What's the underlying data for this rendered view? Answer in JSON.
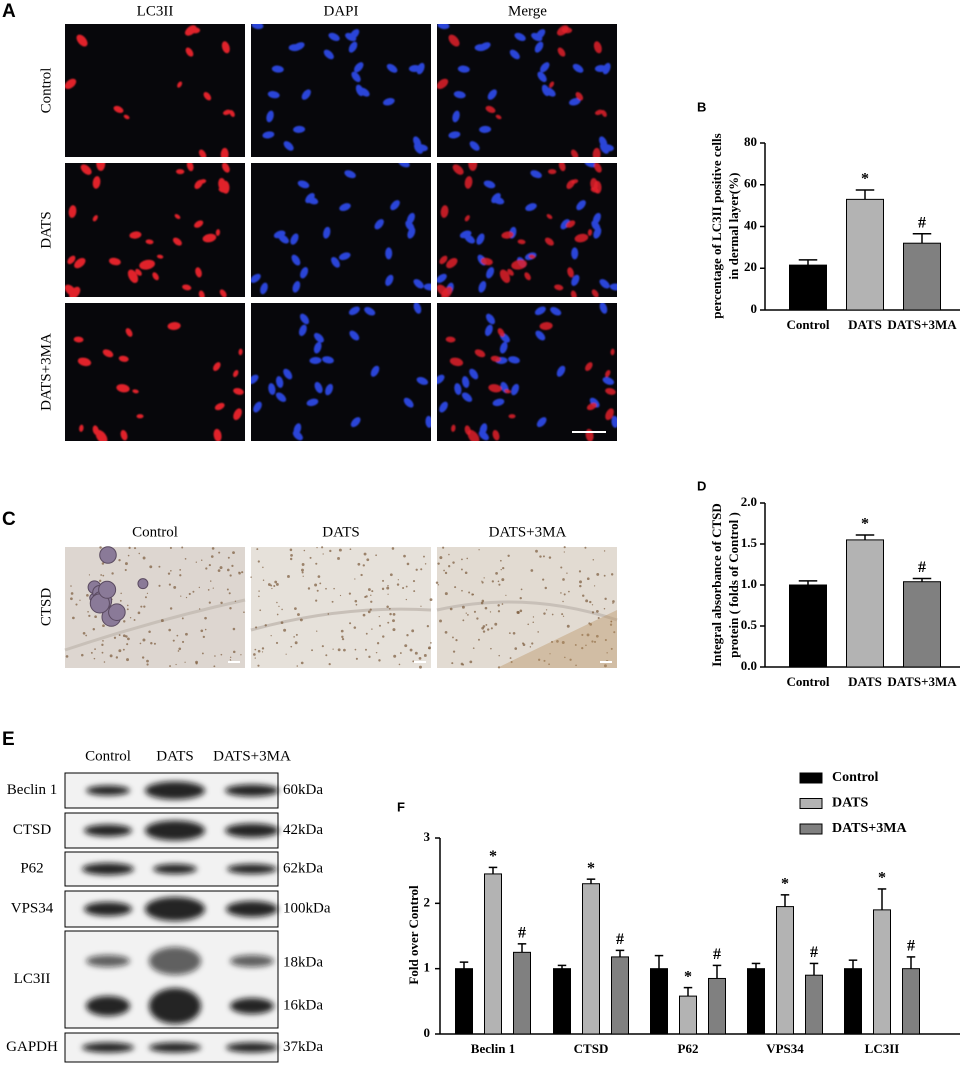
{
  "panels": {
    "A": {
      "letter": "A",
      "columns": [
        "LC3II",
        "DAPI",
        "Merge"
      ],
      "rows": [
        "Control",
        "DATS",
        "DATS+3MA"
      ]
    },
    "C": {
      "letter": "C",
      "columns": [
        "Control",
        "DATS",
        "DATS+3MA"
      ],
      "rows": [
        "CTSD"
      ]
    },
    "E": {
      "letter": "E",
      "lanes": [
        "Control",
        "DATS",
        "DATS+3MA"
      ],
      "blots": [
        {
          "protein": "Beclin 1",
          "kda": [
            "60kDa"
          ]
        },
        {
          "protein": "CTSD",
          "kda": [
            "42kDa"
          ]
        },
        {
          "protein": "P62",
          "kda": [
            "62kDa"
          ]
        },
        {
          "protein": "VPS34",
          "kda": [
            "100kDa"
          ]
        },
        {
          "protein": "LC3II",
          "kda": [
            "18kDa",
            "16kDa"
          ]
        },
        {
          "protein": "GAPDH",
          "kda": [
            "37kDa"
          ]
        }
      ]
    }
  },
  "chart_data": [
    {
      "type": "bar",
      "panel": "B",
      "ylabel": [
        "percentage of LC3II positive cells",
        "in dermal layer(%)"
      ],
      "categories": [
        "Control",
        "DATS",
        "DATS+3MA"
      ],
      "values": [
        21.5,
        53,
        32
      ],
      "errors": [
        2.5,
        4.5,
        4.5
      ],
      "colors": [
        "#000000",
        "#b3b3b3",
        "#808080"
      ],
      "annotations": [
        {
          "index": 1,
          "text": "*"
        },
        {
          "index": 2,
          "text": "#"
        }
      ],
      "ylim": [
        0,
        80
      ],
      "yticks": [
        0,
        20,
        40,
        60,
        80
      ]
    },
    {
      "type": "bar",
      "panel": "D",
      "ylabel": [
        "Integral absorbance of CTSD",
        "protein ( folds of Control )"
      ],
      "categories": [
        "Control",
        "DATS",
        "DATS+3MA"
      ],
      "values": [
        1.0,
        1.55,
        1.04
      ],
      "errors": [
        0.05,
        0.06,
        0.04
      ],
      "colors": [
        "#000000",
        "#b3b3b3",
        "#808080"
      ],
      "annotations": [
        {
          "index": 1,
          "text": "*"
        },
        {
          "index": 2,
          "text": "#"
        }
      ],
      "ylim": [
        0,
        2
      ],
      "yticks": [
        {
          "value": 0,
          "label": "0.0"
        },
        {
          "value": 0.5,
          "label": "0.5"
        },
        {
          "value": 1,
          "label": "1.0"
        },
        {
          "value": 1.5,
          "label": "1.5"
        },
        {
          "value": 2,
          "label": "2.0"
        }
      ]
    },
    {
      "type": "grouped_bar",
      "panel": "F",
      "ylabel": "Fold over Control",
      "categories": [
        "Beclin 1",
        "CTSD",
        "P62",
        "VPS34",
        "LC3II"
      ],
      "series": [
        {
          "name": "Control",
          "color": "#000000",
          "values": [
            1,
            1,
            1,
            1,
            1
          ],
          "errors": [
            0.1,
            0.05,
            0.2,
            0.08,
            0.13
          ]
        },
        {
          "name": "DATS",
          "color": "#b3b3b3",
          "values": [
            2.45,
            2.3,
            0.58,
            1.95,
            1.9
          ],
          "errors": [
            0.1,
            0.07,
            0.13,
            0.18,
            0.32
          ],
          "annotation": "*"
        },
        {
          "name": "DATS+3MA",
          "color": "#808080",
          "values": [
            1.25,
            1.18,
            0.85,
            0.9,
            1.0
          ],
          "errors": [
            0.13,
            0.1,
            0.2,
            0.18,
            0.18
          ],
          "annotation": "#"
        }
      ],
      "ylim": [
        0,
        3
      ],
      "yticks": [
        0,
        1,
        2,
        3
      ],
      "legend": "top-right"
    }
  ]
}
